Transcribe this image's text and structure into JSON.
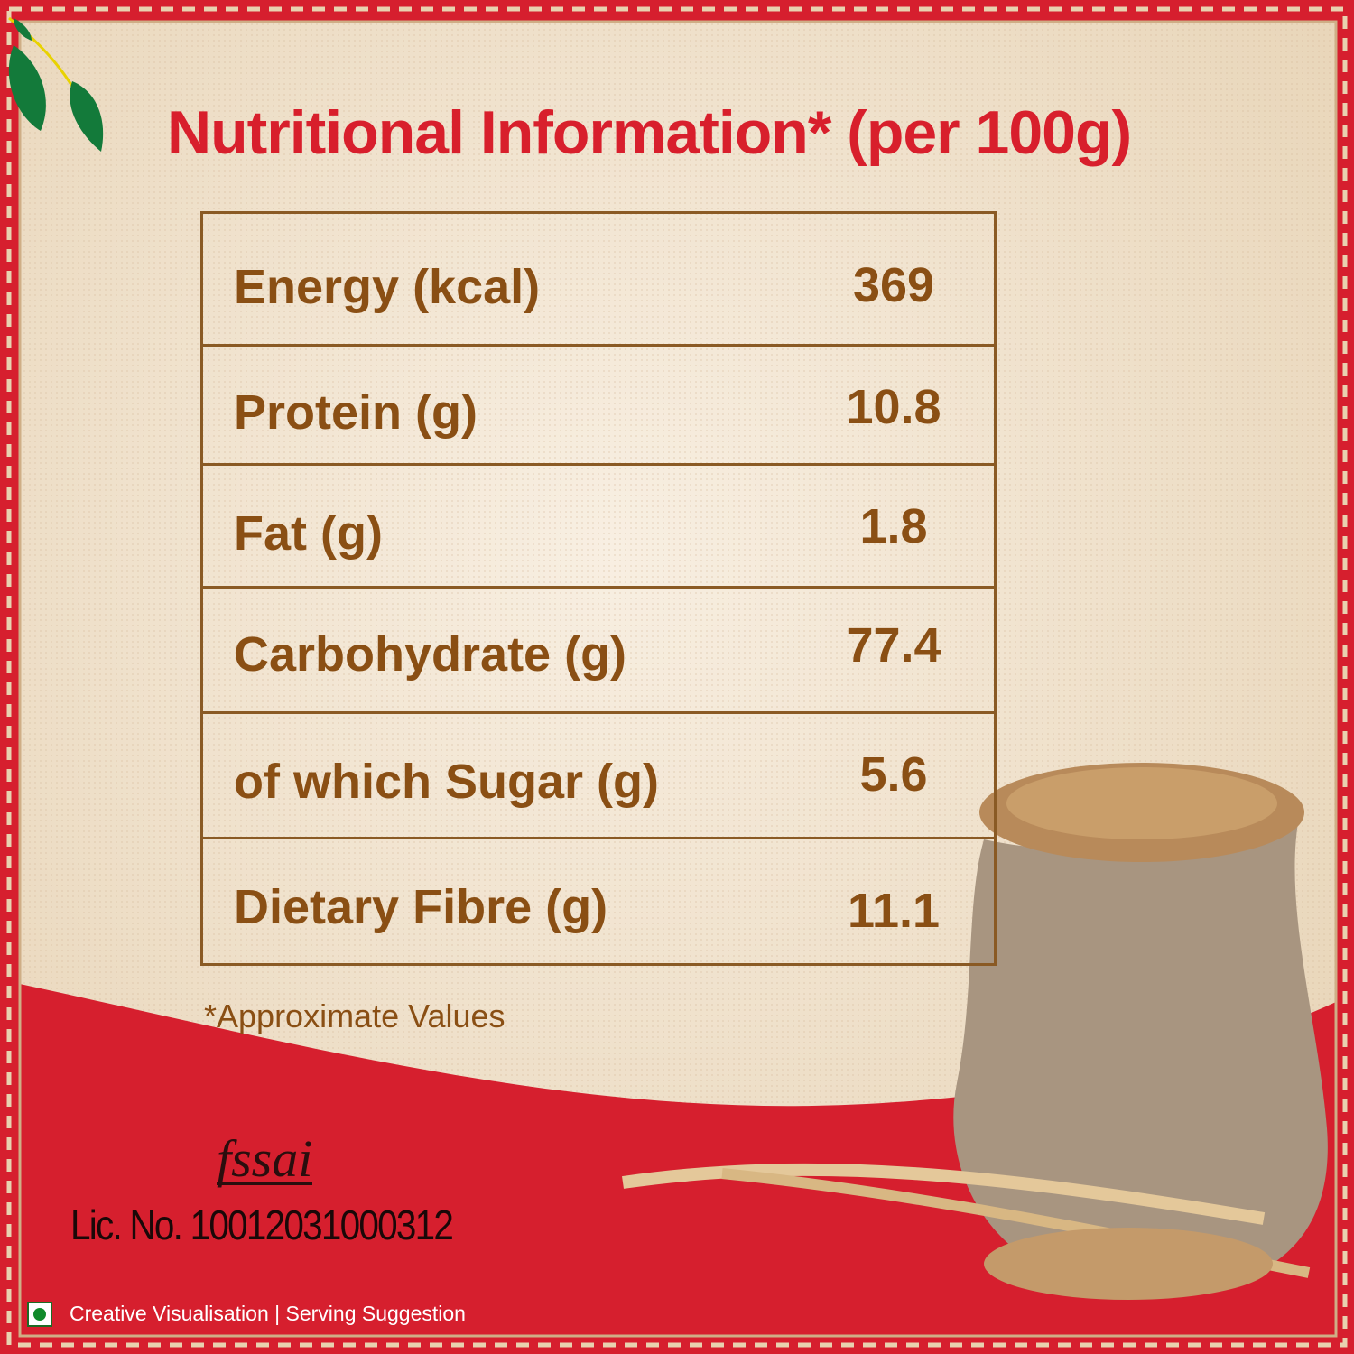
{
  "title": "Nutritional Information* (per 100g)",
  "rows": [
    {
      "label": "Energy (kcal)",
      "value": "369"
    },
    {
      "label": "Protein (g)",
      "value": "10.8"
    },
    {
      "label": "Fat (g)",
      "value": "1.8"
    },
    {
      "label": "Carbohydrate (g)",
      "value": "77.4"
    },
    {
      "label": "of which Sugar (g)",
      "value": "5.6"
    },
    {
      "label": "Dietary Fibre (g)",
      "value": "11.1"
    }
  ],
  "footnote": "*Approximate Values",
  "fssai_logo": "fssai",
  "license": "Lic. No. 10012031000312",
  "disclaimer": "Creative Visualisation | Serving Suggestion",
  "colors": {
    "title": "#d81f2c",
    "text": "#8a4f14",
    "band": "#d61f2e",
    "background": "#efe1cc",
    "veg_mark": "#0f8a2a"
  }
}
